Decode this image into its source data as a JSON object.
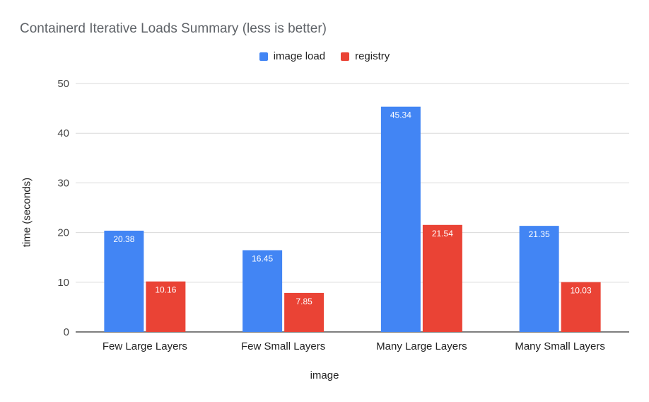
{
  "chart_data": {
    "type": "bar",
    "title": "Containerd Iterative Loads Summary (less is better)",
    "xlabel": "image",
    "ylabel": "time (seconds)",
    "categories": [
      "Few Large Layers",
      "Few Small Layers",
      "Many Large Layers",
      "Many Small Layers"
    ],
    "series": [
      {
        "name": "image load",
        "color": "#4285f4",
        "values": [
          20.38,
          16.45,
          45.34,
          21.35
        ]
      },
      {
        "name": "registry",
        "color": "#ea4335",
        "values": [
          10.16,
          7.85,
          21.54,
          10.03
        ]
      }
    ],
    "ylim": [
      0,
      50
    ],
    "yticks": [
      0,
      10,
      20,
      30,
      40,
      50
    ],
    "grid": true,
    "legend_position": "top-center"
  }
}
